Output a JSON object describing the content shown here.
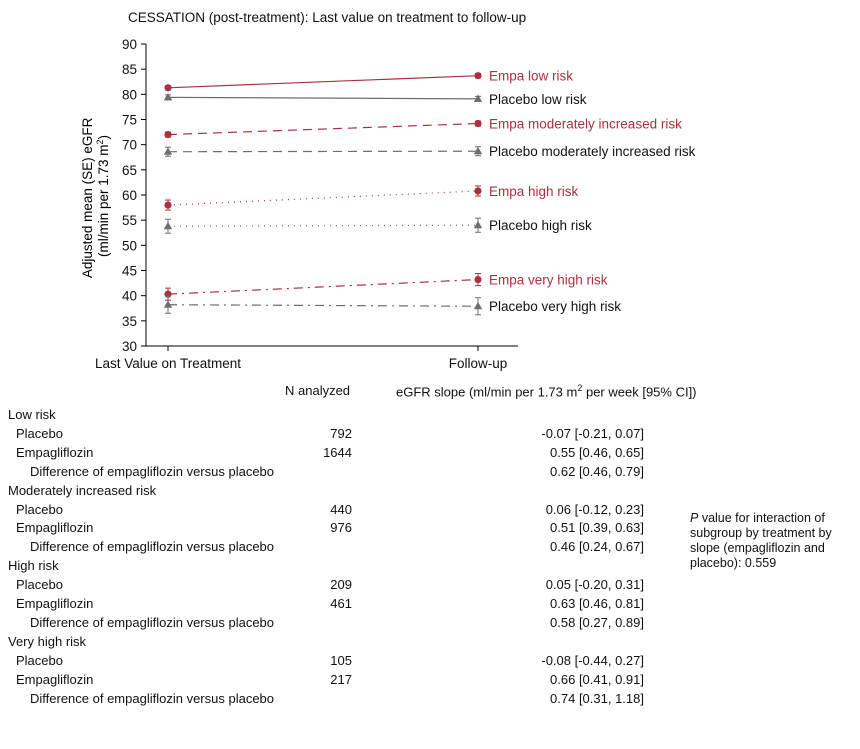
{
  "chart_data": {
    "type": "line",
    "title": "CESSATION (post-treatment): Last value on treatment to follow-up",
    "ylabel_line1": "Adjusted mean (SE) eGFR",
    "ylabel_line2_pre": "(ml/min per 1.73 m",
    "ylabel_line2_sup": "2",
    "ylabel_line2_post": ")",
    "xlabel": "",
    "categories": [
      "Last Value on Treatment",
      "Follow-up"
    ],
    "ylim": [
      30,
      90
    ],
    "yticks": [
      30,
      35,
      40,
      45,
      50,
      55,
      60,
      65,
      70,
      75,
      80,
      85,
      90
    ],
    "grid": false,
    "legend_placement": "inline labels at line ends (right)",
    "series": [
      {
        "name": "Empa low risk",
        "group": "empa",
        "style": "solid",
        "marker": "circle",
        "color": "#a8323f",
        "values": [
          81.3,
          83.7
        ],
        "se": [
          0.4,
          0.4
        ]
      },
      {
        "name": "Placebo low risk",
        "group": "placebo",
        "style": "solid",
        "marker": "triangle",
        "color": "#6e6e6e",
        "values": [
          79.4,
          79.1
        ],
        "se": [
          0.5,
          0.5
        ]
      },
      {
        "name": "Empa moderately increased risk",
        "group": "empa",
        "style": "dashed",
        "marker": "circle",
        "color": "#a8323f",
        "values": [
          72.0,
          74.2
        ],
        "se": [
          0.5,
          0.5
        ]
      },
      {
        "name": "Placebo moderately increased risk",
        "group": "placebo",
        "style": "dashed",
        "marker": "triangle",
        "color": "#6e6e6e",
        "values": [
          68.6,
          68.7
        ],
        "se": [
          0.9,
          0.9
        ]
      },
      {
        "name": "Empa high risk",
        "group": "empa",
        "style": "dotted",
        "marker": "circle",
        "color": "#a8323f",
        "values": [
          58.0,
          60.8
        ],
        "se": [
          1.0,
          1.0
        ]
      },
      {
        "name": "Placebo high risk",
        "group": "placebo",
        "style": "dotted",
        "marker": "triangle",
        "color": "#6e6e6e",
        "values": [
          53.8,
          54.0
        ],
        "se": [
          1.4,
          1.4
        ]
      },
      {
        "name": "Empa very high risk",
        "group": "empa",
        "style": "dashdot",
        "marker": "circle",
        "color": "#a8323f",
        "values": [
          40.3,
          43.2
        ],
        "se": [
          1.2,
          1.2
        ]
      },
      {
        "name": "Placebo very high risk",
        "group": "placebo",
        "style": "dashdot",
        "marker": "triangle",
        "color": "#6e6e6e",
        "values": [
          38.2,
          37.9
        ],
        "se": [
          1.7,
          1.7
        ]
      }
    ]
  },
  "table": {
    "col_n": "N analyzed",
    "col_slope_pre": "eGFR slope (ml/min per 1.73 m",
    "col_slope_sup": "2",
    "col_slope_post": " per week [95% CI])",
    "rows": [
      {
        "kind": "group",
        "label": "Low risk"
      },
      {
        "kind": "item",
        "label": "Placebo",
        "n": "792",
        "slope": "-0.07 [-0.21, 0.07]"
      },
      {
        "kind": "item",
        "label": "Empagliflozin",
        "n": "1644",
        "slope": "0.55 [0.46, 0.65]"
      },
      {
        "kind": "diff",
        "label": "Difference of empagliflozin versus placebo",
        "n": "",
        "slope": "0.62 [0.46, 0.79]"
      },
      {
        "kind": "group",
        "label": "Moderately increased risk"
      },
      {
        "kind": "item",
        "label": "Placebo",
        "n": "440",
        "slope": "0.06 [-0.12, 0.23]"
      },
      {
        "kind": "item",
        "label": "Empagliflozin",
        "n": "976",
        "slope": "0.51 [0.39, 0.63]"
      },
      {
        "kind": "diff",
        "label": "Difference of empagliflozin versus placebo",
        "n": "",
        "slope": "0.46 [0.24, 0.67]"
      },
      {
        "kind": "group",
        "label": "High risk"
      },
      {
        "kind": "item",
        "label": "Placebo",
        "n": "209",
        "slope": "0.05 [-0.20, 0.31]"
      },
      {
        "kind": "item",
        "label": "Empagliflozin",
        "n": "461",
        "slope": "0.63 [0.46, 0.81]"
      },
      {
        "kind": "diff",
        "label": "Difference of empagliflozin versus placebo",
        "n": "",
        "slope": "0.58 [0.27, 0.89]"
      },
      {
        "kind": "group",
        "label": "Very high risk"
      },
      {
        "kind": "item",
        "label": "Placebo",
        "n": "105",
        "slope": "-0.08 [-0.44, 0.27]"
      },
      {
        "kind": "item",
        "label": "Empagliflozin",
        "n": "217",
        "slope": "0.66 [0.41, 0.91]"
      },
      {
        "kind": "diff",
        "label": "Difference of empagliflozin versus placebo",
        "n": "",
        "slope": "0.74 [0.31, 1.18]"
      }
    ]
  },
  "note": {
    "p_letter": "P",
    "text": " value for interaction of subgroup by treatment by slope (empagliflozin and placebo): 0.559"
  }
}
